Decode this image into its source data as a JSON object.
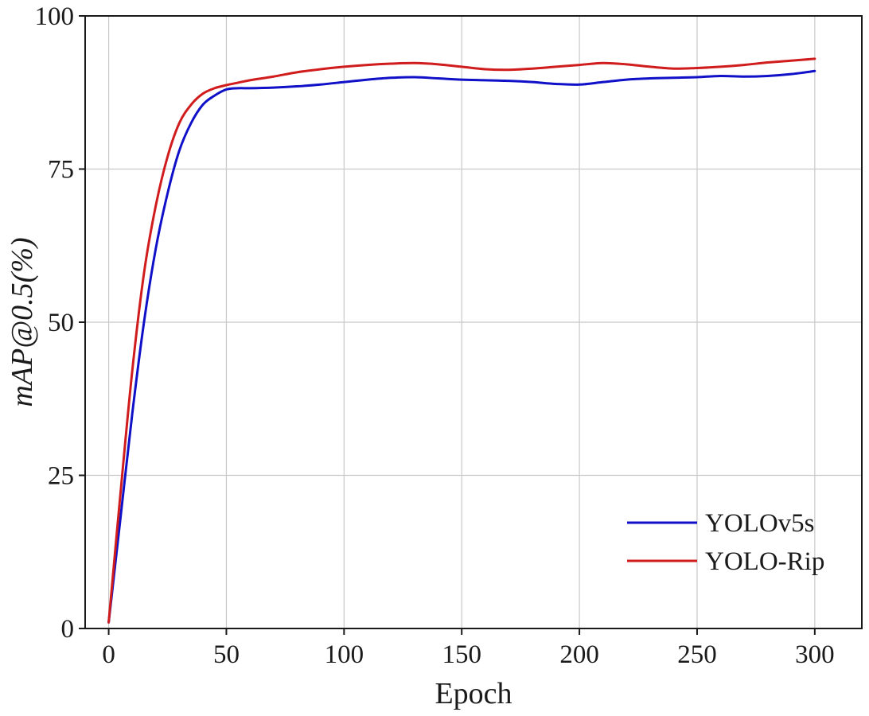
{
  "chart_data": {
    "type": "line",
    "title": "",
    "xlabel": "Epoch",
    "ylabel": "mAP@0.5(%)",
    "xlim": [
      -10,
      320
    ],
    "ylim": [
      0,
      100
    ],
    "xticks": [
      0,
      50,
      100,
      150,
      200,
      250,
      300
    ],
    "yticks": [
      0,
      25,
      50,
      75,
      100
    ],
    "grid": true,
    "legend_position": "bottom-right",
    "series": [
      {
        "name": "YOLOv5s",
        "color": "#1010c8",
        "x": [
          0,
          5,
          10,
          15,
          20,
          25,
          30,
          35,
          40,
          45,
          50,
          55,
          60,
          70,
          80,
          90,
          100,
          110,
          120,
          130,
          140,
          150,
          160,
          170,
          180,
          190,
          200,
          210,
          220,
          230,
          240,
          250,
          260,
          270,
          280,
          290,
          300
        ],
        "y": [
          1,
          18,
          35,
          50,
          62,
          71,
          78,
          82.5,
          85.5,
          87,
          88,
          88.2,
          88.2,
          88.3,
          88.5,
          88.8,
          89.2,
          89.6,
          89.9,
          90,
          89.8,
          89.6,
          89.5,
          89.4,
          89.2,
          88.9,
          88.8,
          89.2,
          89.6,
          89.8,
          89.9,
          90,
          90.2,
          90.1,
          90.2,
          90.5,
          91
        ]
      },
      {
        "name": "YOLO-Rip",
        "color": "#d01c1c",
        "x": [
          0,
          5,
          10,
          15,
          20,
          25,
          30,
          35,
          40,
          45,
          50,
          55,
          60,
          70,
          80,
          90,
          100,
          110,
          120,
          130,
          140,
          150,
          160,
          170,
          180,
          190,
          200,
          210,
          220,
          230,
          240,
          250,
          260,
          270,
          280,
          290,
          300
        ],
        "y": [
          1,
          22,
          42,
          58,
          69,
          77,
          82.5,
          85.5,
          87.3,
          88.2,
          88.7,
          89.1,
          89.5,
          90.1,
          90.8,
          91.3,
          91.7,
          92,
          92.2,
          92.3,
          92.1,
          91.7,
          91.3,
          91.2,
          91.4,
          91.7,
          92,
          92.3,
          92.1,
          91.7,
          91.4,
          91.5,
          91.7,
          92,
          92.4,
          92.7,
          93
        ]
      }
    ]
  }
}
